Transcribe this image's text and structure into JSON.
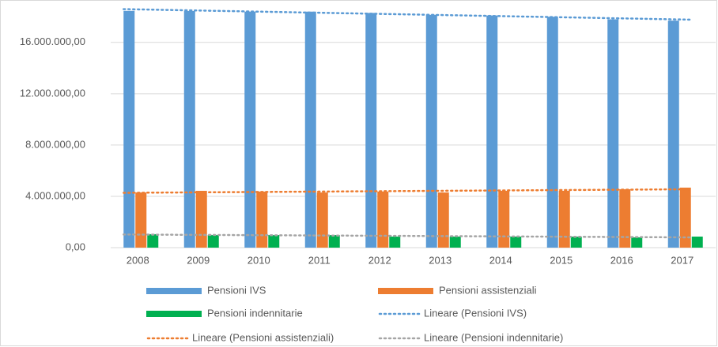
{
  "chart_data": {
    "type": "bar",
    "categories": [
      "2008",
      "2009",
      "2010",
      "2011",
      "2012",
      "2013",
      "2014",
      "2015",
      "2016",
      "2017"
    ],
    "series": [
      {
        "name": "Pensioni IVS",
        "color": "#5b9bd5",
        "values": [
          18460000,
          18450000,
          18400000,
          18400000,
          18300000,
          18150000,
          18100000,
          18000000,
          17800000,
          17700000
        ],
        "trendline": {
          "name": "Lineare (Pensioni IVS)",
          "color": "#5b9bd5"
        }
      },
      {
        "name": "Pensioni assistenziali",
        "color": "#ed7d31",
        "values": [
          4300000,
          4430000,
          4370000,
          4300000,
          4370000,
          4300000,
          4430000,
          4430000,
          4550000,
          4680000
        ],
        "trendline": {
          "name": "Lineare (Pensioni assistenziali)",
          "color": "#ed7d31"
        }
      },
      {
        "name": "Pensioni indennitarie",
        "color": "#00b050",
        "values": [
          1050000,
          980000,
          980000,
          980000,
          860000,
          860000,
          860000,
          860000,
          800000,
          860000
        ],
        "trendline": {
          "name": "Lineare (Pensioni indennitarie)",
          "color": "#a5a5a5"
        }
      }
    ],
    "ylim": [
      0,
      19000000
    ],
    "yticks": [
      {
        "value": 0,
        "label": "0,00"
      },
      {
        "value": 4000000,
        "label": "4.000.000,00"
      },
      {
        "value": 8000000,
        "label": "8.000.000,00"
      },
      {
        "value": 12000000,
        "label": "12.000.000,00"
      },
      {
        "value": 16000000,
        "label": "16.000.000,00"
      }
    ],
    "grid": true
  }
}
